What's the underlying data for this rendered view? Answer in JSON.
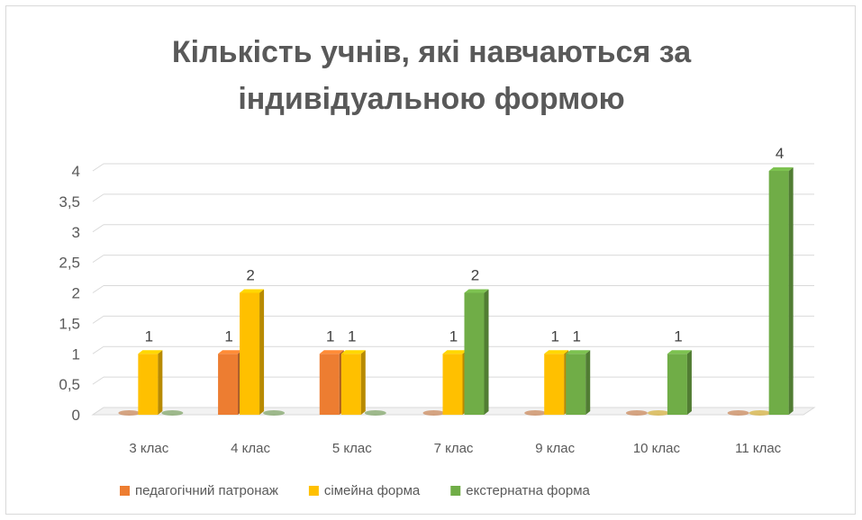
{
  "chart_data": {
    "type": "bar",
    "title_lines": [
      "Кількість учнів, які навчаються за",
      "індивідуальною формою"
    ],
    "categories": [
      "3 клас",
      "4 клас",
      "5 клас",
      "7 клас",
      "9 клас",
      "10 клас",
      "11 клас"
    ],
    "series": [
      {
        "name": "педагогічний патронаж",
        "color": "#ed7d31",
        "values": [
          0,
          1,
          1,
          0,
          0,
          0,
          0
        ]
      },
      {
        "name": "сімейна форма",
        "color": "#ffc000",
        "values": [
          1,
          2,
          1,
          1,
          1,
          0,
          0
        ]
      },
      {
        "name": "екстернатна форма",
        "color": "#70ad47",
        "values": [
          0,
          0,
          0,
          2,
          1,
          1,
          4
        ]
      }
    ],
    "yticks": [
      "0",
      "0,5",
      "1",
      "1,5",
      "2",
      "2,5",
      "3",
      "3,5",
      "4"
    ],
    "ylim": [
      0,
      4
    ],
    "grid": true,
    "legend_position": "bottom",
    "style": "3d-clustered-column"
  }
}
